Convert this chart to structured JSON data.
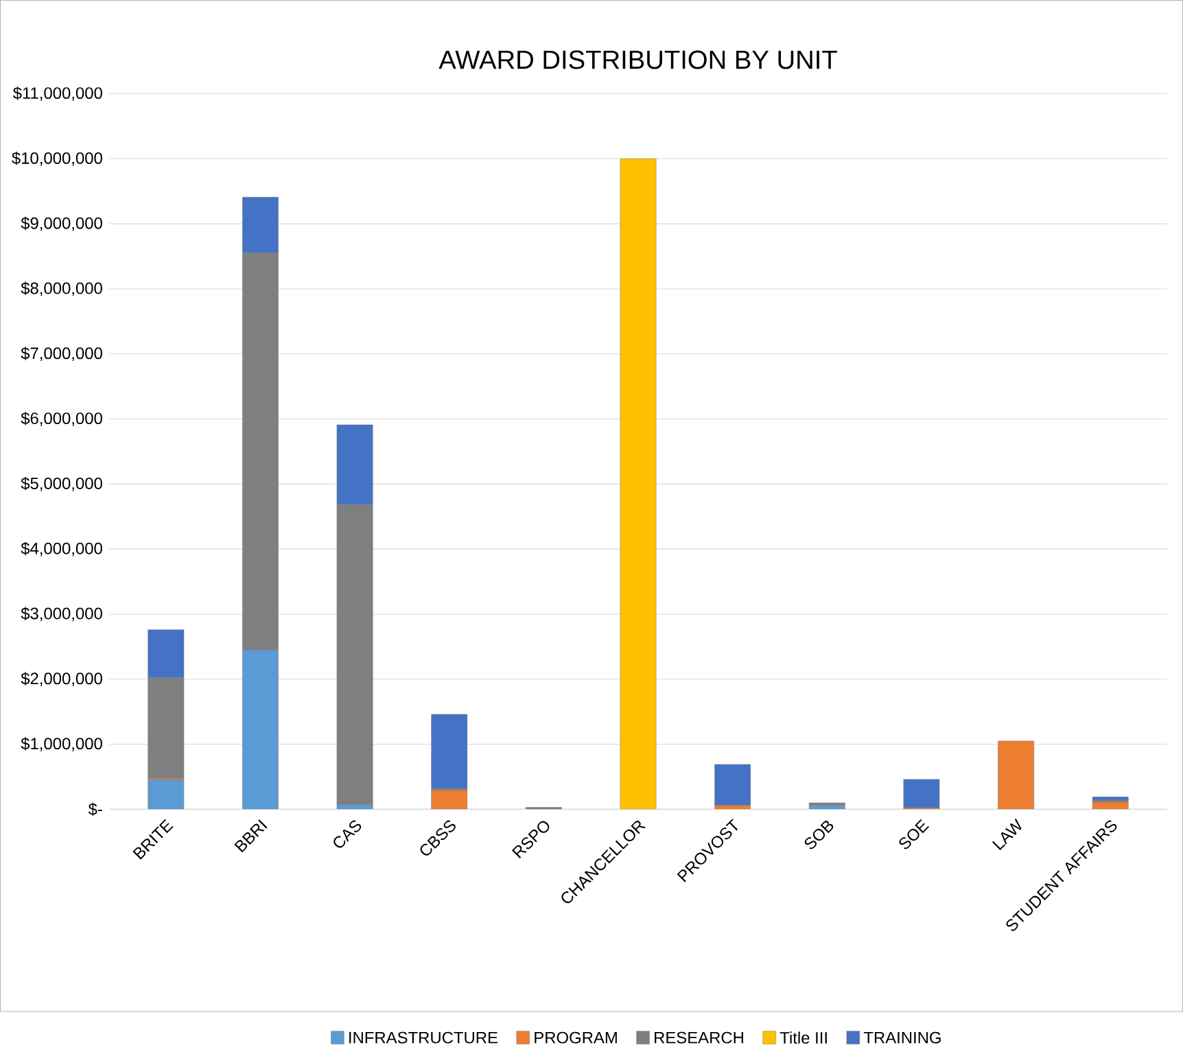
{
  "chart_data": {
    "type": "bar",
    "title": "AWARD DISTRIBUTION BY UNIT",
    "stacked": true,
    "categories": [
      "BRITE",
      "BBRI",
      "CAS",
      "CBSS",
      "RSPO",
      "CHANCELLOR",
      "PROVOST",
      "SOB",
      "SOE",
      "LAW",
      "STUDENT AFFAIRS"
    ],
    "series": [
      {
        "name": "INFRASTRUCTURE",
        "color": "#5b9bd5",
        "values": [
          450000,
          2450000,
          70000,
          0,
          0,
          0,
          0,
          60000,
          0,
          0,
          0
        ]
      },
      {
        "name": "PROGRAM",
        "color": "#ed7d31",
        "values": [
          20000,
          0,
          0,
          290000,
          0,
          0,
          60000,
          0,
          20000,
          1050000,
          110000
        ]
      },
      {
        "name": "RESEARCH",
        "color": "#7f7f7f",
        "values": [
          1550000,
          6100000,
          4610000,
          30000,
          30000,
          0,
          0,
          40000,
          0,
          0,
          30000
        ]
      },
      {
        "name": "Title III",
        "color": "#ffc000",
        "values": [
          0,
          0,
          0,
          0,
          0,
          10000000,
          0,
          0,
          0,
          0,
          0
        ]
      },
      {
        "name": "TRAINING",
        "color": "#4472c4",
        "values": [
          740000,
          860000,
          1230000,
          1140000,
          0,
          0,
          630000,
          0,
          440000,
          0,
          50000
        ]
      }
    ],
    "ylim": [
      0,
      11000000
    ],
    "yticks": [
      {
        "value": 0,
        "label": "$-"
      },
      {
        "value": 1000000,
        "label": "$1,000,000"
      },
      {
        "value": 2000000,
        "label": "$2,000,000"
      },
      {
        "value": 3000000,
        "label": "$3,000,000"
      },
      {
        "value": 4000000,
        "label": "$4,000,000"
      },
      {
        "value": 5000000,
        "label": "$5,000,000"
      },
      {
        "value": 6000000,
        "label": "$6,000,000"
      },
      {
        "value": 7000000,
        "label": "$7,000,000"
      },
      {
        "value": 8000000,
        "label": "$8,000,000"
      },
      {
        "value": 9000000,
        "label": "$9,000,000"
      },
      {
        "value": 10000000,
        "label": "$10,000,000"
      },
      {
        "value": 11000000,
        "label": "$11,000,000"
      }
    ],
    "grid": "y",
    "legend": "bottom"
  }
}
